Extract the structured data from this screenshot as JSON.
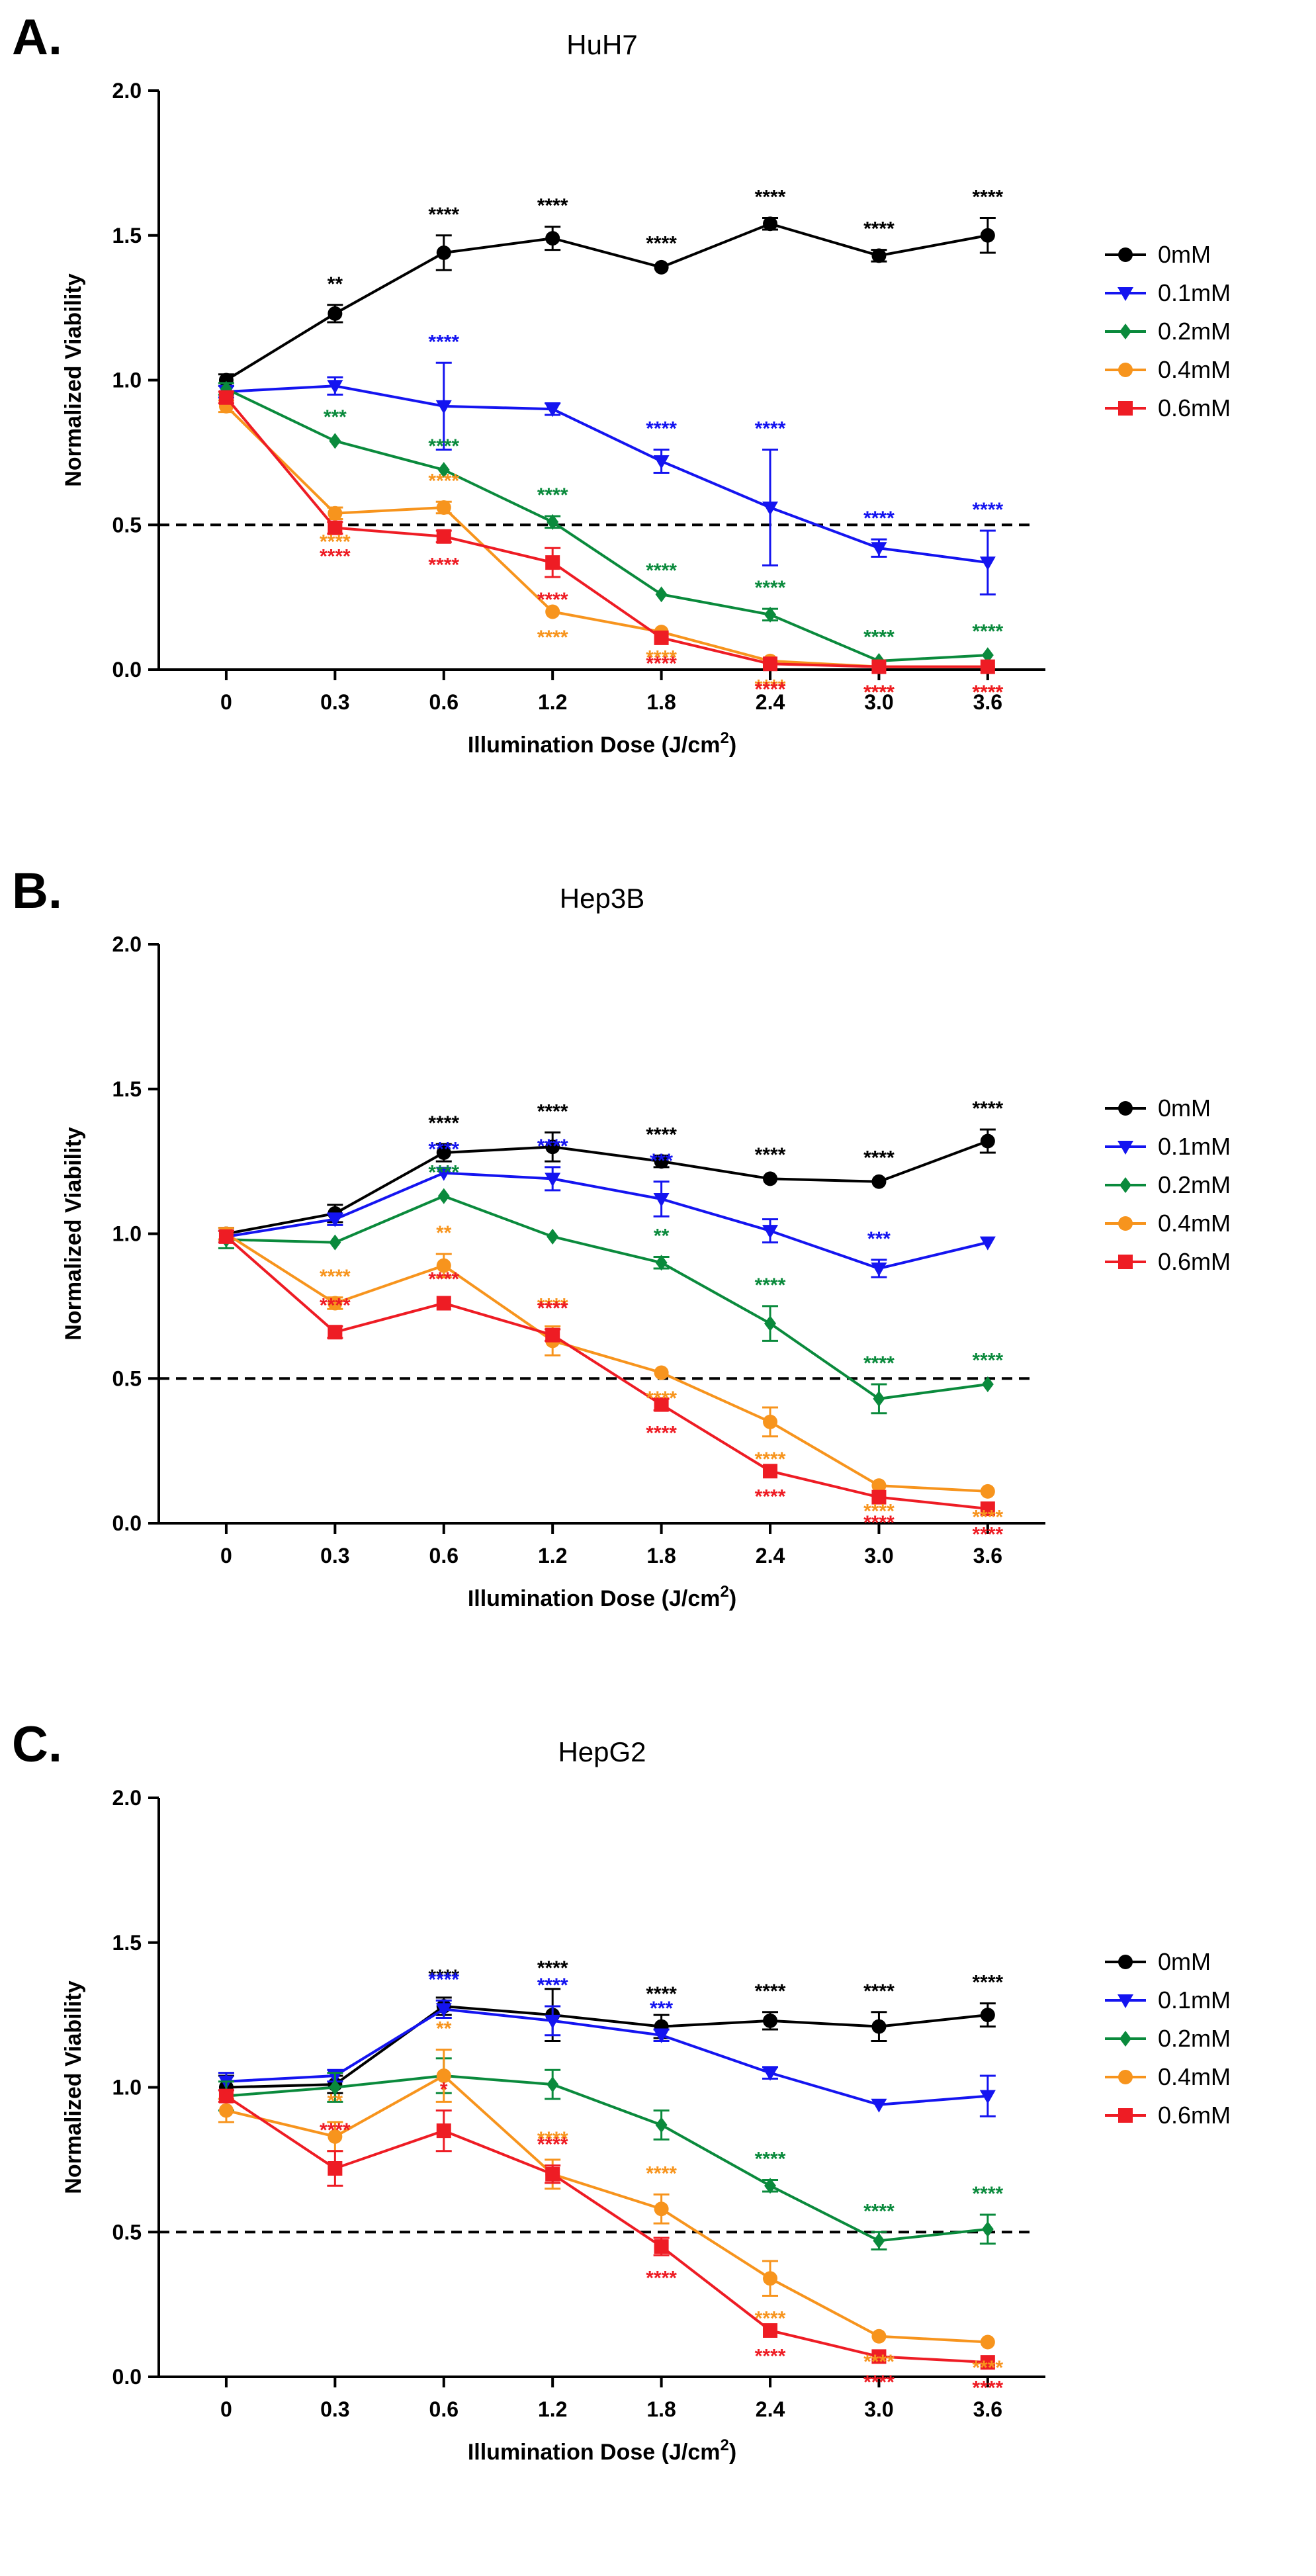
{
  "figure": {
    "colors": {
      "0mM": "#000000",
      "0.1mM": "#1414f0",
      "0.2mM": "#0a8a3c",
      "0.4mM": "#f7941d",
      "0.6mM": "#ee1c24"
    }
  },
  "chart_data": [
    {
      "letter": "A.",
      "type": "line",
      "title": "HuH7",
      "xlabel": "Illumination Dose (J/cm",
      "xlabel_sup": "2",
      "xlabel_end": ")",
      "ylabel": "Normalized Viability",
      "categories": [
        "0",
        "0.3",
        "0.6",
        "1.2",
        "1.8",
        "2.4",
        "3.0",
        "3.6"
      ],
      "yticks": [
        "0.0",
        "0.5",
        "1.0",
        "1.5",
        "2.0"
      ],
      "ylim": [
        0,
        2
      ],
      "reference_line": 0.5,
      "series": [
        {
          "name": "0mM",
          "marker": "circle",
          "values": [
            1.0,
            1.23,
            1.44,
            1.49,
            1.39,
            1.54,
            1.43,
            1.5
          ],
          "errors": [
            0.02,
            0.03,
            0.06,
            0.04,
            0.01,
            0.02,
            0.02,
            0.06
          ],
          "sig": [
            "",
            "**",
            "****",
            "****",
            "****",
            "****",
            "****",
            "****"
          ]
        },
        {
          "name": "0.1mM",
          "marker": "triangle-down",
          "values": [
            0.96,
            0.98,
            0.91,
            0.9,
            0.72,
            0.56,
            0.42,
            0.37
          ],
          "errors": [
            0.02,
            0.03,
            0.15,
            0.02,
            0.04,
            0.2,
            0.03,
            0.11
          ],
          "sig": [
            "",
            "",
            "****",
            "",
            "****",
            "****",
            "****",
            "****"
          ]
        },
        {
          "name": "0.2mM",
          "marker": "diamond",
          "values": [
            0.97,
            0.79,
            0.69,
            0.51,
            0.26,
            0.19,
            0.03,
            0.05
          ],
          "errors": [
            0.02,
            0.01,
            0.01,
            0.02,
            0.01,
            0.02,
            0.01,
            0.01
          ],
          "sig": [
            "",
            "***",
            "****",
            "****",
            "****",
            "****",
            "****",
            "****"
          ]
        },
        {
          "name": "0.4mM",
          "marker": "circle",
          "values": [
            0.91,
            0.54,
            0.56,
            0.2,
            0.13,
            0.03,
            0.01,
            0.01
          ],
          "errors": [
            0.02,
            0.02,
            0.02,
            0.01,
            0.01,
            0.01,
            0.01,
            0.01
          ],
          "sig": [
            "",
            "****",
            "****",
            "****",
            "****",
            "****",
            "****",
            "****"
          ]
        },
        {
          "name": "0.6mM",
          "marker": "square",
          "values": [
            0.94,
            0.49,
            0.46,
            0.37,
            0.11,
            0.02,
            0.01,
            0.01
          ],
          "errors": [
            0.02,
            0.02,
            0.02,
            0.05,
            0.01,
            0.01,
            0.01,
            0.01
          ],
          "sig": [
            "",
            "****",
            "****",
            "****",
            "****",
            "****",
            "****",
            "****"
          ]
        }
      ]
    },
    {
      "letter": "B.",
      "type": "line",
      "title": "Hep3B",
      "xlabel": "Illumination Dose (J/cm",
      "xlabel_sup": "2",
      "xlabel_end": ")",
      "ylabel": "Normalized Viability",
      "categories": [
        "0",
        "0.3",
        "0.6",
        "1.2",
        "1.8",
        "2.4",
        "3.0",
        "3.6"
      ],
      "yticks": [
        "0.0",
        "0.5",
        "1.0",
        "1.5",
        "2.0"
      ],
      "ylim": [
        0,
        2
      ],
      "reference_line": 0.5,
      "series": [
        {
          "name": "0mM",
          "marker": "circle",
          "values": [
            1.0,
            1.07,
            1.28,
            1.3,
            1.25,
            1.19,
            1.18,
            1.32
          ],
          "errors": [
            0.02,
            0.03,
            0.03,
            0.05,
            0.02,
            0.01,
            0.01,
            0.04
          ],
          "sig": [
            "",
            "",
            "****",
            "****",
            "****",
            "****",
            "****",
            "****"
          ]
        },
        {
          "name": "0.1mM",
          "marker": "triangle-down",
          "values": [
            0.99,
            1.05,
            1.21,
            1.19,
            1.12,
            1.01,
            0.88,
            0.97
          ],
          "errors": [
            0.02,
            0.02,
            0.01,
            0.04,
            0.06,
            0.04,
            0.03,
            0.01
          ],
          "sig": [
            "",
            "",
            "****",
            "****",
            "***",
            "",
            "***",
            ""
          ]
        },
        {
          "name": "0.2mM",
          "marker": "diamond",
          "values": [
            0.98,
            0.97,
            1.13,
            0.99,
            0.9,
            0.69,
            0.43,
            0.48
          ],
          "errors": [
            0.03,
            0.01,
            0.01,
            0.01,
            0.02,
            0.06,
            0.05,
            0.01
          ],
          "sig": [
            "",
            "",
            "****",
            "",
            "**",
            "****",
            "****",
            "****"
          ]
        },
        {
          "name": "0.4mM",
          "marker": "circle",
          "values": [
            1.0,
            0.76,
            0.89,
            0.63,
            0.52,
            0.35,
            0.13,
            0.11
          ],
          "errors": [
            0.02,
            0.02,
            0.04,
            0.05,
            0.01,
            0.05,
            0.01,
            0.01
          ],
          "sig": [
            "",
            "****",
            "**",
            "****",
            "****",
            "****",
            "****",
            "****"
          ]
        },
        {
          "name": "0.6mM",
          "marker": "square",
          "values": [
            0.99,
            0.66,
            0.76,
            0.65,
            0.41,
            0.18,
            0.09,
            0.05
          ],
          "errors": [
            0.02,
            0.02,
            0.01,
            0.02,
            0.02,
            0.01,
            0.01,
            0.01
          ],
          "sig": [
            "",
            "****",
            "****",
            "****",
            "****",
            "****",
            "****",
            "****"
          ]
        }
      ]
    },
    {
      "letter": "C.",
      "type": "line",
      "title": "HepG2",
      "xlabel": "Illumination Dose (J/cm",
      "xlabel_sup": "2",
      "xlabel_end": ")",
      "ylabel": "Normalized Viability",
      "categories": [
        "0",
        "0.3",
        "0.6",
        "1.2",
        "1.8",
        "2.4",
        "3.0",
        "3.6"
      ],
      "yticks": [
        "0.0",
        "0.5",
        "1.0",
        "1.5",
        "2.0"
      ],
      "ylim": [
        0,
        2
      ],
      "reference_line": 0.5,
      "series": [
        {
          "name": "0mM",
          "marker": "circle",
          "values": [
            1.0,
            1.01,
            1.28,
            1.25,
            1.21,
            1.23,
            1.21,
            1.25
          ],
          "errors": [
            0.04,
            0.03,
            0.03,
            0.09,
            0.04,
            0.03,
            0.05,
            0.04
          ],
          "sig": [
            "",
            "",
            "****",
            "****",
            "****",
            "****",
            "****",
            "****"
          ]
        },
        {
          "name": "0.1mM",
          "marker": "triangle-down",
          "values": [
            1.02,
            1.04,
            1.27,
            1.23,
            1.18,
            1.05,
            0.94,
            0.97
          ],
          "errors": [
            0.03,
            0.02,
            0.03,
            0.05,
            0.02,
            0.02,
            0.01,
            0.07
          ],
          "sig": [
            "",
            "",
            "****",
            "****",
            "***",
            "",
            "",
            ""
          ]
        },
        {
          "name": "0.2mM",
          "marker": "diamond",
          "values": [
            0.97,
            1.0,
            1.04,
            1.01,
            0.87,
            0.66,
            0.47,
            0.51
          ],
          "errors": [
            0.05,
            0.05,
            0.06,
            0.05,
            0.05,
            0.02,
            0.03,
            0.05
          ],
          "sig": [
            "",
            "",
            "",
            "",
            "",
            "****",
            "****",
            "****"
          ]
        },
        {
          "name": "0.4mM",
          "marker": "circle",
          "values": [
            0.92,
            0.83,
            1.04,
            0.7,
            0.58,
            0.34,
            0.14,
            0.12
          ],
          "errors": [
            0.04,
            0.05,
            0.09,
            0.05,
            0.05,
            0.06,
            0.01,
            0.01
          ],
          "sig": [
            "",
            "**",
            "**",
            "****",
            "****",
            "****",
            "****",
            "****"
          ]
        },
        {
          "name": "0.6mM",
          "marker": "square",
          "values": [
            0.97,
            0.72,
            0.85,
            0.7,
            0.45,
            0.16,
            0.07,
            0.05
          ],
          "errors": [
            0.02,
            0.06,
            0.07,
            0.03,
            0.03,
            0.01,
            0.01,
            0.01
          ],
          "sig": [
            "",
            "****",
            "*",
            "****",
            "****",
            "****",
            "****",
            "****"
          ]
        }
      ]
    }
  ]
}
